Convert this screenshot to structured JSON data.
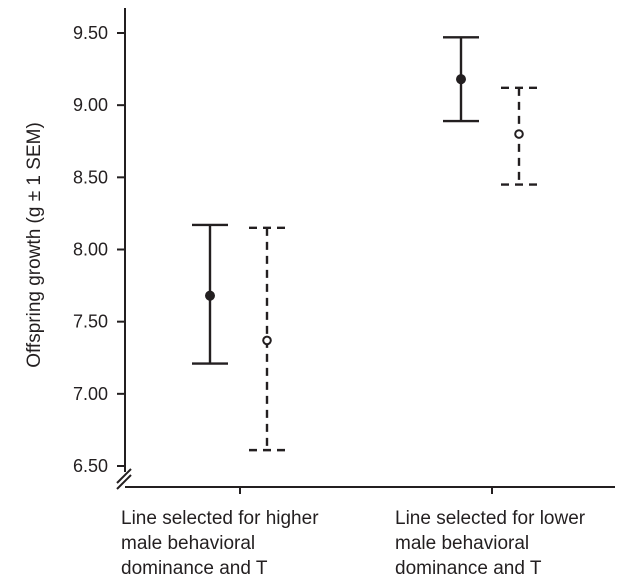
{
  "chart_data": {
    "type": "errorbar",
    "title": "",
    "ylabel": "Offspring growth (g ± 1 SEM)",
    "xlabel": "",
    "ylim": [
      6.5,
      9.75
    ],
    "y_axis_break": true,
    "y_ticks": [
      "6.50",
      "7.00",
      "7.50",
      "8.00",
      "8.50",
      "9.00",
      "9.50"
    ],
    "grid": false,
    "categories": [
      [
        "Line selected for higher",
        "male behavioral",
        "dominance and T"
      ],
      [
        "Line selected for lower",
        "male behavioral",
        "dominance and T"
      ]
    ],
    "series": [
      {
        "marker": "filled-circle",
        "line_style": "solid",
        "values": [
          7.68,
          9.18
        ],
        "lower": [
          7.21,
          8.89
        ],
        "upper": [
          8.17,
          9.47
        ]
      },
      {
        "marker": "open-circle",
        "line_style": "dashed",
        "values": [
          7.37,
          8.8
        ],
        "lower": [
          6.61,
          8.45
        ],
        "upper": [
          8.15,
          9.12
        ]
      }
    ],
    "colors": {
      "ink": "#231f20",
      "background": "#ffffff"
    }
  }
}
